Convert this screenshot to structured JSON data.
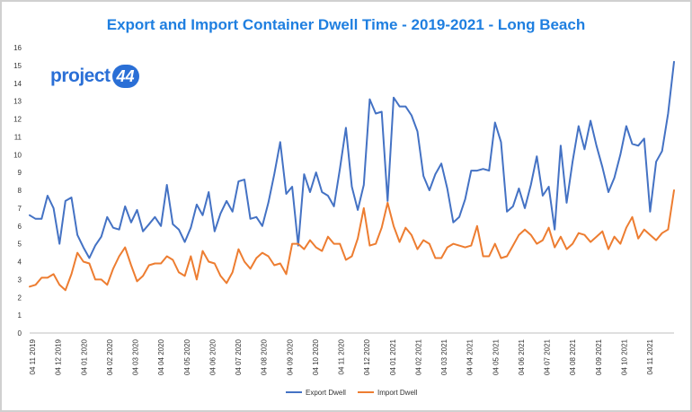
{
  "title": "Export and Import Container Dwell Time - 2019-2021 - Long Beach",
  "logo": {
    "text": "project",
    "badge": "44"
  },
  "chart_data": {
    "type": "line",
    "title": "Export and Import Container Dwell Time - 2019-2021 - Long Beach",
    "xlabel": "",
    "ylabel": "",
    "ylim": [
      0,
      16
    ],
    "yticks": [
      0,
      1,
      2,
      3,
      4,
      5,
      6,
      7,
      8,
      9,
      10,
      11,
      12,
      13,
      14,
      15,
      16
    ],
    "grid": false,
    "legend": "bottom",
    "x_tick_labels": [
      "04 11 2019",
      "04 12 2019",
      "04 01 2020",
      "04 02 2020",
      "04 03 2020",
      "04 04 2020",
      "04 05 2020",
      "04 06 2020",
      "04 07 2020",
      "04 08 2020",
      "04 09 2020",
      "04 10 2020",
      "04 11 2020",
      "04 12 2020",
      "04 01 2021",
      "04 02 2021",
      "04 03 2021",
      "04 04 2021",
      "04 05 2021",
      "04 06 2021",
      "04 07 2021",
      "04 08 2021",
      "04 09 2021",
      "04 10 2021",
      "04 11 2021"
    ],
    "series": [
      {
        "name": "Export Dwell",
        "color": "#4472c4",
        "values": [
          6.6,
          6.4,
          6.4,
          7.7,
          7.0,
          5.0,
          7.4,
          7.6,
          5.5,
          4.8,
          4.2,
          4.9,
          5.4,
          6.5,
          5.9,
          5.8,
          7.1,
          6.2,
          6.9,
          5.7,
          6.1,
          6.5,
          6.0,
          8.3,
          6.1,
          5.8,
          5.1,
          5.9,
          7.2,
          6.6,
          7.9,
          5.7,
          6.7,
          7.4,
          6.8,
          8.5,
          8.6,
          6.4,
          6.5,
          6.0,
          7.3,
          8.9,
          10.7,
          7.8,
          8.2,
          4.9,
          8.9,
          7.9,
          9.0,
          7.9,
          7.7,
          7.1,
          9.2,
          11.5,
          8.2,
          6.9,
          8.3,
          13.1,
          12.3,
          12.4,
          7.4,
          13.2,
          12.7,
          12.7,
          12.2,
          11.3,
          8.8,
          8.0,
          8.9,
          9.5,
          8.1,
          6.2,
          6.5,
          7.5,
          9.1,
          9.1,
          9.2,
          9.1,
          11.8,
          10.7,
          6.8,
          7.1,
          8.1,
          7.0,
          8.3,
          9.9,
          7.7,
          8.2,
          5.8,
          10.5,
          7.3,
          9.6,
          11.6,
          10.3,
          11.9,
          10.5,
          9.3,
          7.9,
          8.7,
          10.0,
          11.6,
          10.6,
          10.5,
          10.9,
          6.8,
          9.6,
          10.2,
          12.3,
          15.2
        ]
      },
      {
        "name": "Import Dwell",
        "color": "#ed7d31",
        "values": [
          2.6,
          2.7,
          3.1,
          3.1,
          3.3,
          2.7,
          2.4,
          3.3,
          4.5,
          4.0,
          3.9,
          3.0,
          3.0,
          2.7,
          3.6,
          4.3,
          4.8,
          3.8,
          2.9,
          3.2,
          3.8,
          3.9,
          3.9,
          4.3,
          4.1,
          3.4,
          3.2,
          4.3,
          3.0,
          4.6,
          4.0,
          3.9,
          3.2,
          2.8,
          3.4,
          4.7,
          4.0,
          3.6,
          4.2,
          4.5,
          4.3,
          3.8,
          3.9,
          3.3,
          5.0,
          5.0,
          4.7,
          5.2,
          4.8,
          4.6,
          5.4,
          5.0,
          5.0,
          4.1,
          4.3,
          5.3,
          7.0,
          4.9,
          5.0,
          5.9,
          7.3,
          6.0,
          5.1,
          5.9,
          5.5,
          4.7,
          5.2,
          5.0,
          4.2,
          4.2,
          4.8,
          5.0,
          4.9,
          4.8,
          4.9,
          6.0,
          4.3,
          4.3,
          5.0,
          4.2,
          4.3,
          4.9,
          5.5,
          5.8,
          5.5,
          5.0,
          5.2,
          5.9,
          4.8,
          5.4,
          4.7,
          5.0,
          5.6,
          5.5,
          5.1,
          5.4,
          5.7,
          4.7,
          5.4,
          5.0,
          5.9,
          6.5,
          5.3,
          5.8,
          5.5,
          5.2,
          5.6,
          5.8,
          8.0
        ]
      }
    ]
  }
}
